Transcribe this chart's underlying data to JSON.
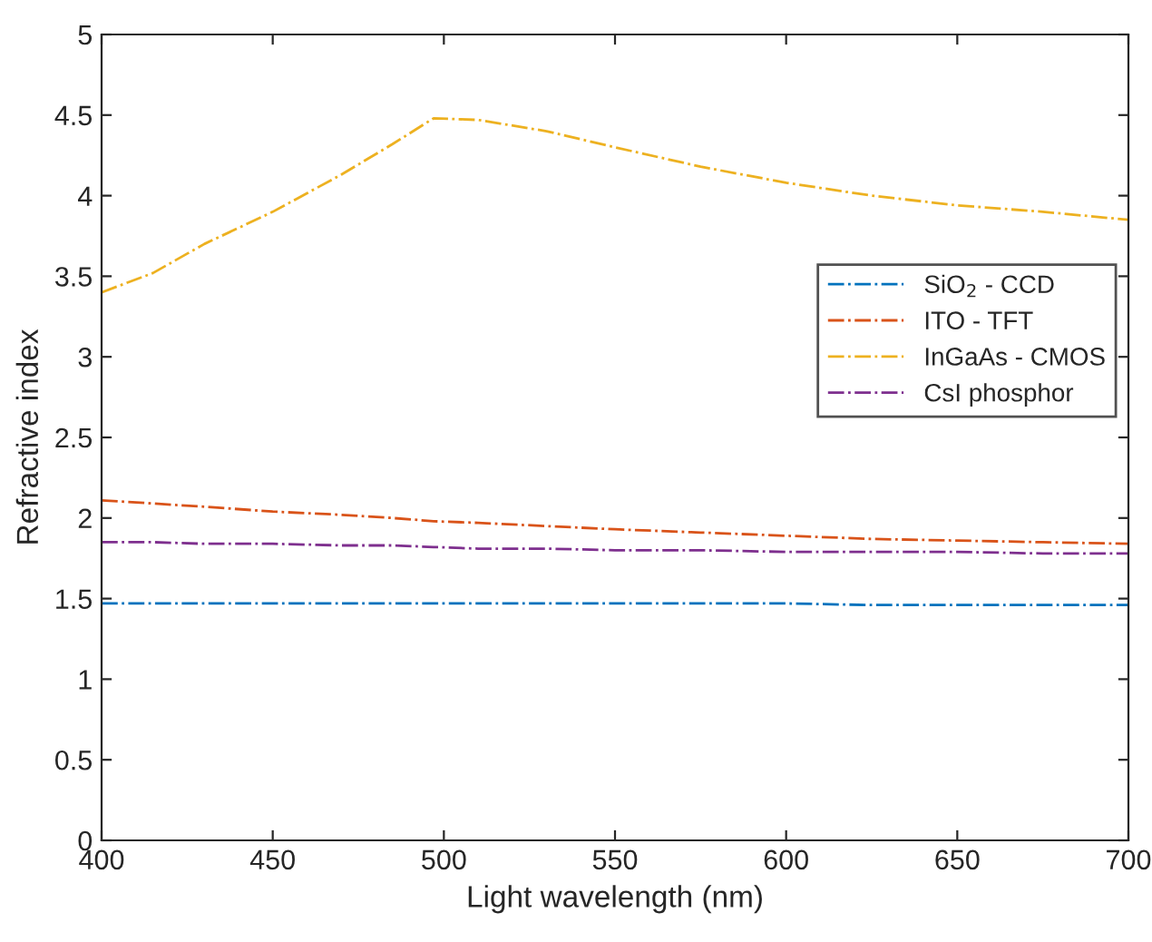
{
  "chart_data": {
    "type": "line",
    "xlabel": "Light wavelength (nm)",
    "ylabel": "Refractive index",
    "x": [
      400,
      415,
      430,
      450,
      470,
      485,
      497,
      510,
      530,
      550,
      575,
      600,
      625,
      650,
      675,
      700
    ],
    "series": [
      {
        "name": "SiO$_{2}$ - CCD",
        "color": "#0072bd",
        "values": [
          1.47,
          1.47,
          1.47,
          1.47,
          1.47,
          1.47,
          1.47,
          1.47,
          1.47,
          1.47,
          1.47,
          1.47,
          1.46,
          1.46,
          1.46,
          1.46
        ]
      },
      {
        "name": "ITO - TFT",
        "color": "#d95319",
        "values": [
          2.11,
          2.09,
          2.07,
          2.04,
          2.02,
          2.0,
          1.98,
          1.97,
          1.95,
          1.93,
          1.91,
          1.89,
          1.87,
          1.86,
          1.85,
          1.84
        ]
      },
      {
        "name": "InGaAs - CMOS",
        "color": "#edb120",
        "values": [
          3.4,
          3.52,
          3.7,
          3.9,
          4.13,
          4.32,
          4.48,
          4.47,
          4.4,
          4.3,
          4.18,
          4.08,
          4.0,
          3.94,
          3.9,
          3.85
        ]
      },
      {
        "name": "CsI phosphor",
        "color": "#7e2f8e",
        "values": [
          1.85,
          1.85,
          1.84,
          1.84,
          1.83,
          1.83,
          1.82,
          1.81,
          1.81,
          1.8,
          1.8,
          1.79,
          1.79,
          1.79,
          1.78,
          1.78
        ]
      }
    ],
    "xlim": [
      400,
      700
    ],
    "xticks": [
      400,
      450,
      500,
      550,
      600,
      650,
      700
    ],
    "ylim": [
      0,
      5
    ],
    "yticks": [
      0,
      0.5,
      1,
      1.5,
      2,
      2.5,
      3,
      3.5,
      4,
      4.5,
      5
    ],
    "grid": false,
    "legend": "right",
    "line_style": "dashdot",
    "marker": "none"
  }
}
